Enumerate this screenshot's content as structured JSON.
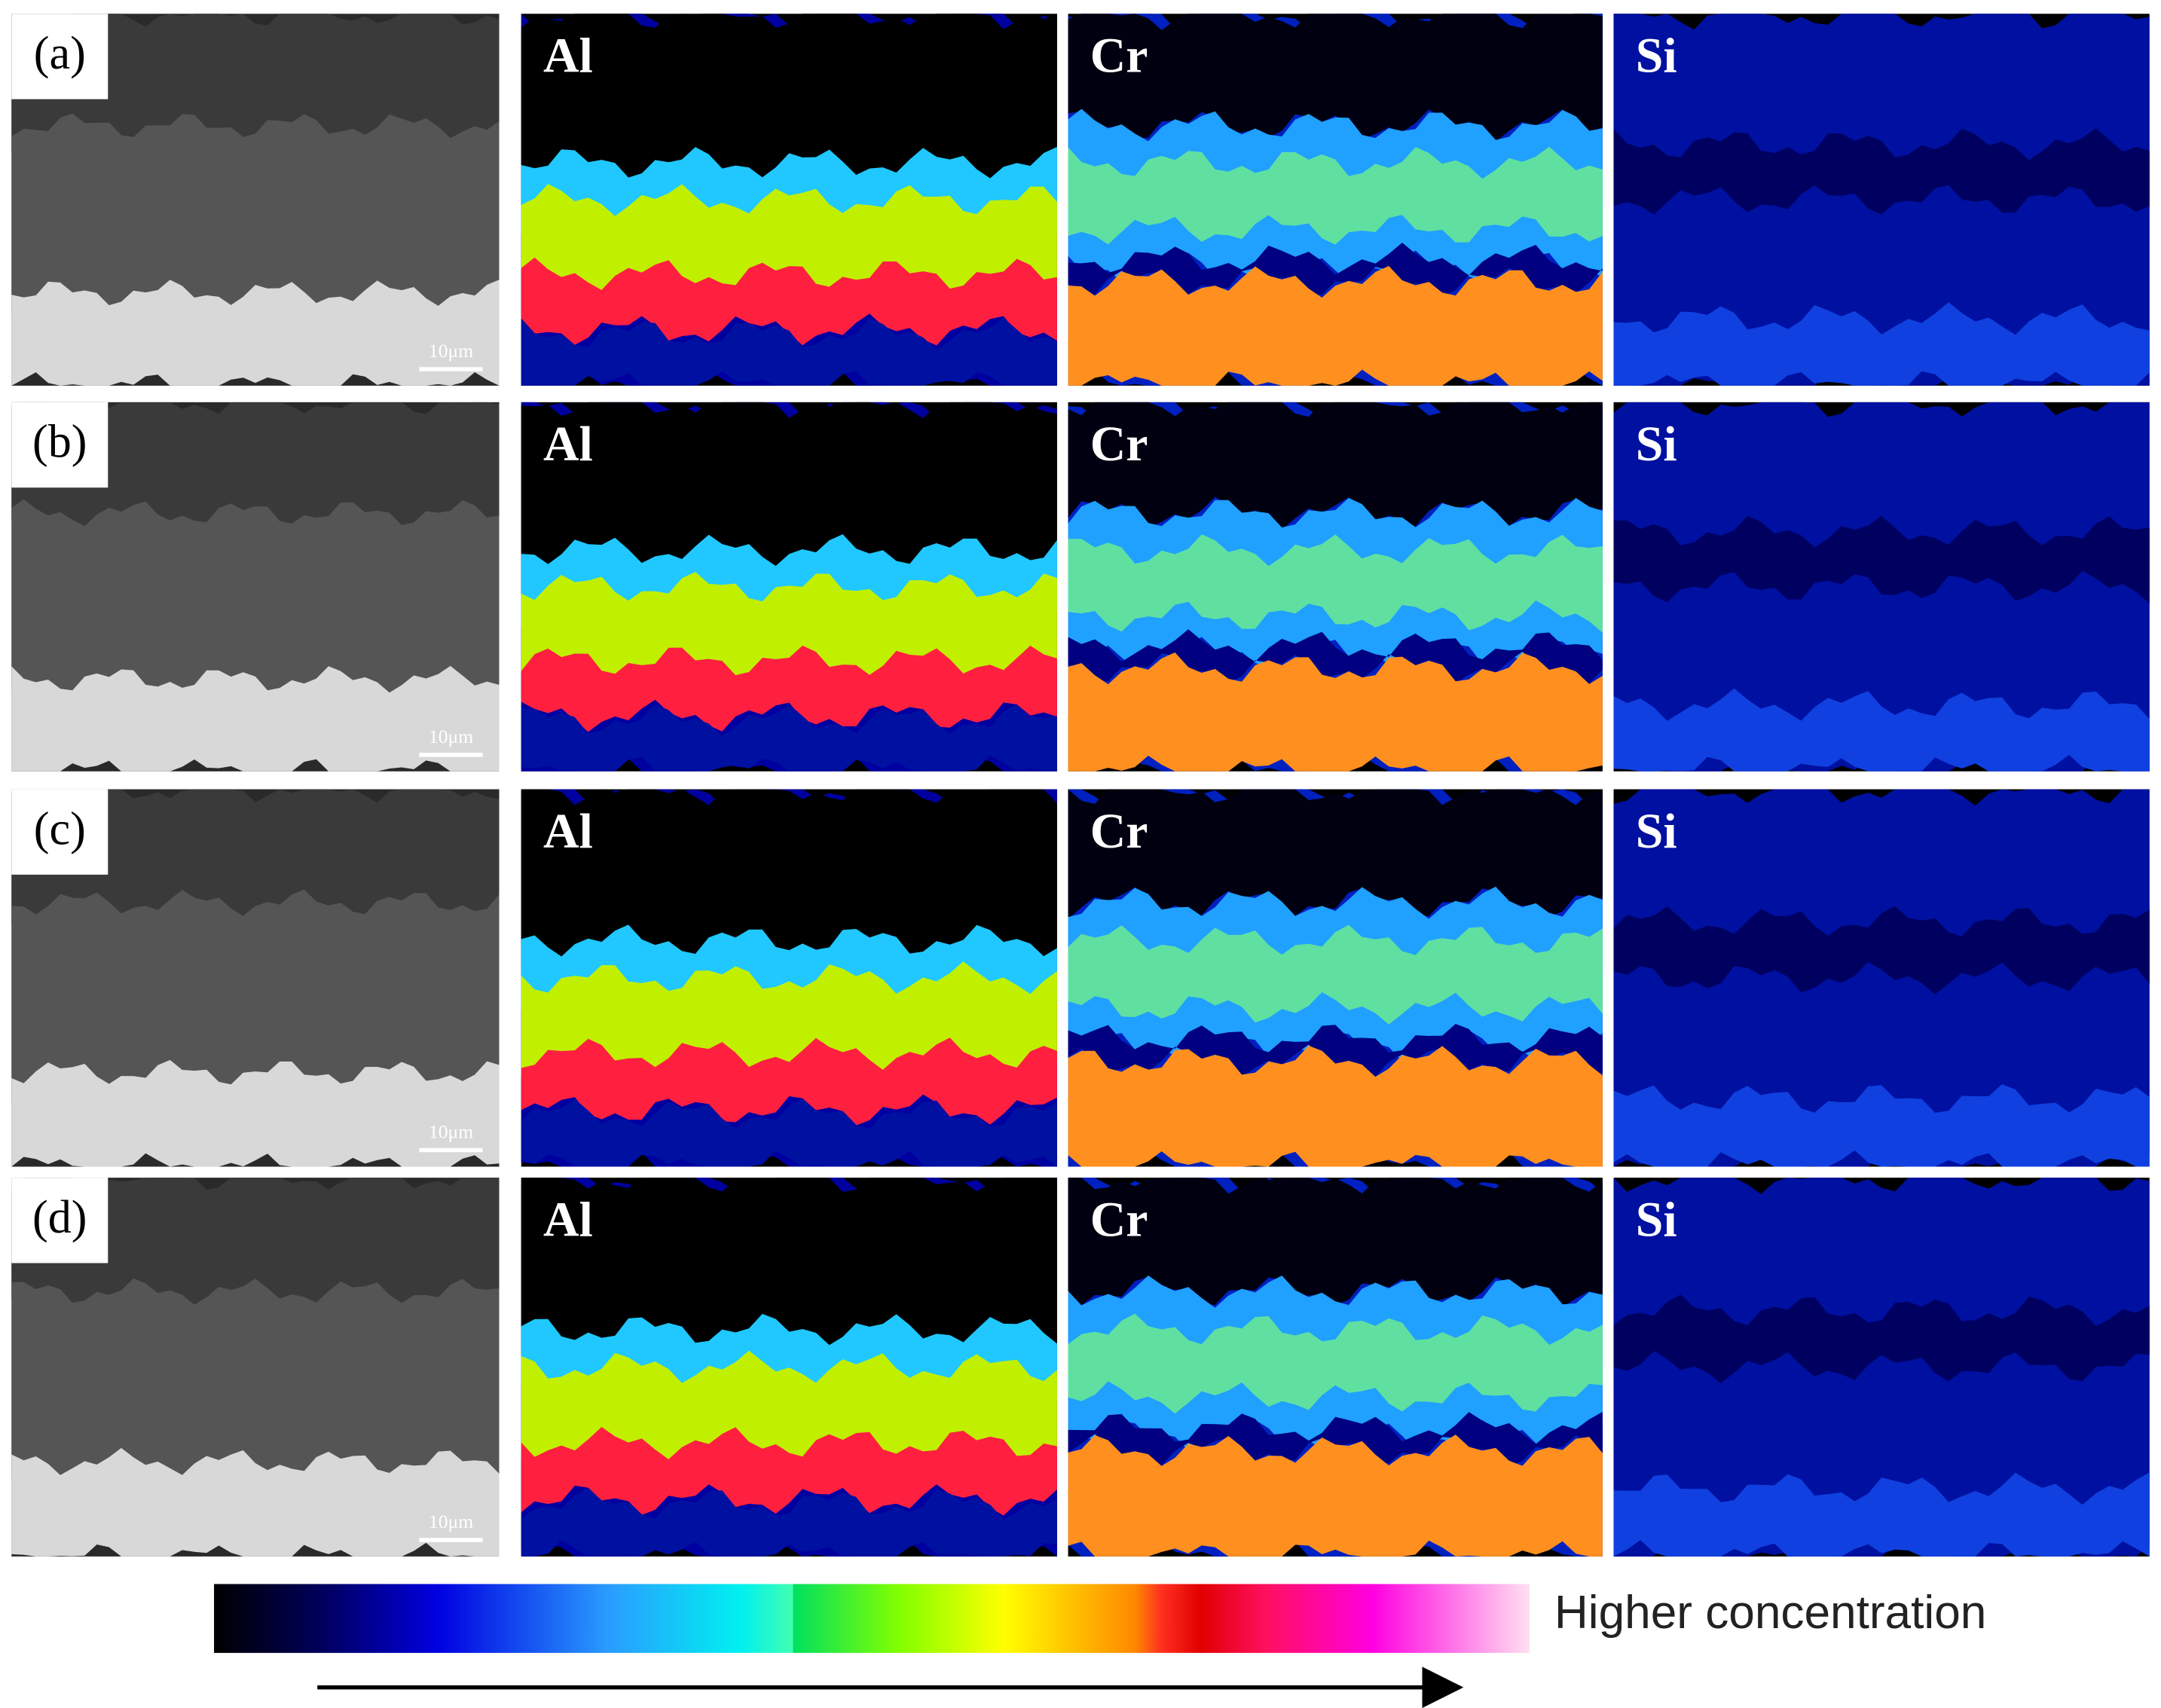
{
  "rows": [
    {
      "label": "(a)",
      "scale_bar": "10μm",
      "maps": [
        "Al",
        "Cr",
        "Si"
      ]
    },
    {
      "label": "(b)",
      "scale_bar": "10μm",
      "maps": [
        "Al",
        "Cr",
        "Si"
      ]
    },
    {
      "label": "(c)",
      "scale_bar": "10μm",
      "maps": [
        "Al",
        "Cr",
        "Si"
      ]
    },
    {
      "label": "(d)",
      "scale_bar": "10μm",
      "maps": [
        "Al",
        "Cr",
        "Si"
      ]
    }
  ],
  "colorbar": {
    "label": "Higher concentration"
  }
}
